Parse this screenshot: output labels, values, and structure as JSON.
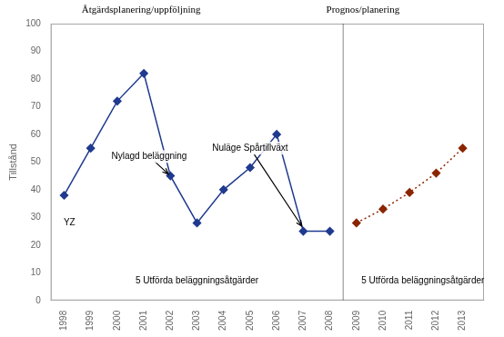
{
  "chart_data": {
    "type": "line",
    "title": "Åtgärdsplanering/uppföljning",
    "subtitle": "Prognos/planering",
    "ylabel": "Tillstånd",
    "x": [
      1998,
      1999,
      2000,
      2001,
      2002,
      2003,
      2004,
      2005,
      2006,
      2007,
      2008,
      2009,
      2010,
      2011,
      2012,
      2013
    ],
    "series": [
      {
        "color": "#1F3A8F",
        "marker": "diamond",
        "line_style": "solid",
        "values": [
          38,
          55,
          72,
          82,
          45,
          28,
          40,
          48,
          60,
          25,
          25,
          null,
          null,
          null,
          null,
          null
        ]
      },
      {
        "color": "#8B2500",
        "marker": "diamond",
        "line_style": "dotted",
        "values": [
          null,
          null,
          null,
          null,
          null,
          null,
          null,
          null,
          null,
          null,
          null,
          28,
          33,
          39,
          46,
          55
        ]
      }
    ],
    "xlim": [
      1997.5,
      2013.8
    ],
    "xticks": [
      1998,
      1999,
      2000,
      2001,
      2002,
      2003,
      2004,
      2005,
      2006,
      2007,
      2008,
      2009,
      2010,
      2011,
      2012,
      2013
    ],
    "ylim": [
      0,
      100
    ],
    "yticks": [
      0,
      10,
      20,
      30,
      40,
      50,
      60,
      70,
      80,
      90,
      100
    ],
    "grid": false,
    "vlines": [
      {
        "x": 2008.5,
        "color": "#888888"
      }
    ],
    "annotations": [
      {
        "text": "YZ",
        "x": 1998.2,
        "y": 28
      },
      {
        "text": "Nylagd beläggning",
        "x": 2001.2,
        "y": 52,
        "arrow_to": [
          2002,
          45
        ]
      },
      {
        "text": "Nuläge Spårtillväxt",
        "x": 2005,
        "y": 55,
        "arrow_to": [
          2007,
          26
        ]
      },
      {
        "text": "5 Utförda beläggningsåtgärder",
        "x": 2003,
        "y": 7
      },
      {
        "text": "5 Utförda beläggningsåtgärder",
        "x": 2011.5,
        "y": 7
      }
    ]
  }
}
